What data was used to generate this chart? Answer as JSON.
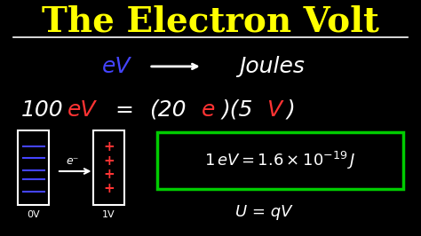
{
  "background_color": "#000000",
  "title": "The Electron Volt",
  "title_color": "#FFFF00",
  "title_fontsize": 28,
  "white": "#FFFFFF",
  "blue": "#4444FF",
  "red": "#FF3333",
  "green": "#00CC00",
  "label_0V": "0V",
  "label_1V": "1V"
}
